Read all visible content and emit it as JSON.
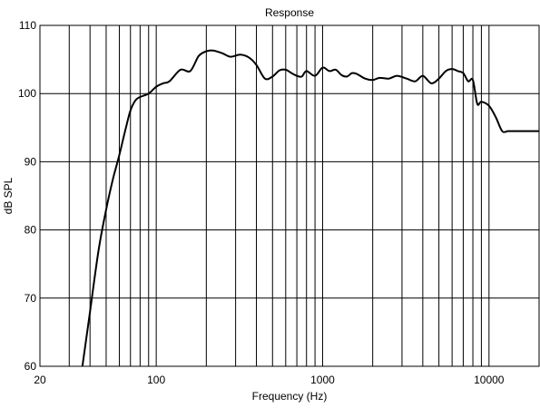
{
  "chart_data": {
    "type": "line",
    "title": "Response",
    "xlabel": "Frequency (Hz)",
    "ylabel": "dB SPL",
    "xscale": "log",
    "xlim": [
      20,
      20000
    ],
    "ylim": [
      60,
      110
    ],
    "grid": true,
    "x_tick_labels": [
      "20",
      "100",
      "1000",
      "10000"
    ],
    "y_tick_labels": [
      "60",
      "70",
      "80",
      "90",
      "100",
      "110"
    ],
    "x_ticks": [
      20,
      100,
      1000,
      10000
    ],
    "y_ticks": [
      60,
      70,
      80,
      90,
      100,
      110
    ],
    "series": [
      {
        "color": "#000000",
        "x": [
          36,
          40,
          45,
          50,
          55,
          60,
          65,
          70,
          75,
          80,
          90,
          100,
          110,
          120,
          140,
          160,
          180,
          200,
          220,
          250,
          280,
          320,
          360,
          400,
          450,
          500,
          550,
          600,
          650,
          700,
          750,
          800,
          900,
          1000,
          1100,
          1200,
          1300,
          1400,
          1500,
          1600,
          1800,
          2000,
          2200,
          2500,
          2800,
          3200,
          3600,
          4000,
          4500,
          5000,
          5500,
          6000,
          6500,
          7000,
          7500,
          8000,
          8500,
          9000,
          10000,
          11000,
          12000,
          13000,
          14000,
          15000,
          16000,
          17000,
          18000,
          19000,
          20000
        ],
        "y": [
          60,
          68,
          77,
          83,
          87.5,
          91,
          94.5,
          97.5,
          99,
          99.5,
          100,
          101,
          101.5,
          101.8,
          103.5,
          103.3,
          105.5,
          106.2,
          106.3,
          105.9,
          105.4,
          105.7,
          105.3,
          104.2,
          102.2,
          102.5,
          103.4,
          103.5,
          103,
          102.6,
          102.5,
          103.3,
          102.6,
          103.8,
          103.3,
          103.5,
          102.7,
          102.5,
          103,
          102.9,
          102.2,
          102,
          102.3,
          102.2,
          102.6,
          102.2,
          101.8,
          102.6,
          101.5,
          102.2,
          103.3,
          103.6,
          103.3,
          103,
          101.8,
          102,
          98.5,
          98.8,
          98.2,
          96.5,
          94.5,
          94.5,
          94.5,
          94.5,
          94.5,
          94.5,
          94.5,
          94.5,
          94.5
        ]
      }
    ]
  }
}
